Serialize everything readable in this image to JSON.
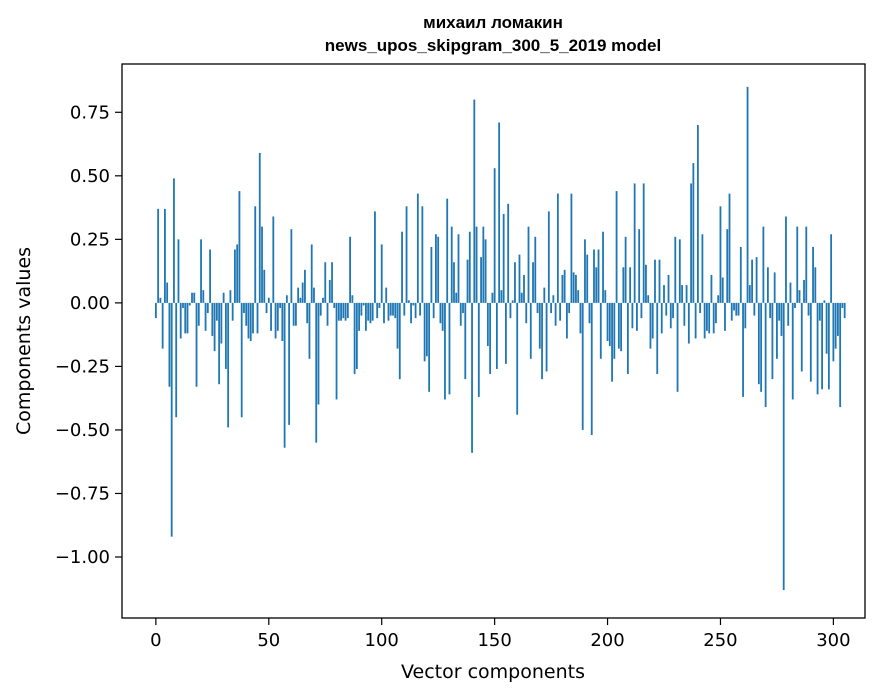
{
  "chart_data": {
    "type": "bar",
    "title": "михаил ломакин",
    "subtitle": "news_upos_skipgram_300_5_2019 model",
    "xlabel": "Vector components",
    "ylabel": "Components values",
    "xlim": [
      -15,
      314
    ],
    "ylim": [
      -1.24,
      0.94
    ],
    "xticks": [
      0,
      50,
      100,
      150,
      200,
      250,
      300
    ],
    "xtick_labels": [
      "0",
      "50",
      "100",
      "150",
      "200",
      "250",
      "300"
    ],
    "yticks": [
      0.75,
      0.5,
      0.25,
      0.0,
      -0.25,
      -0.5,
      -0.75,
      -1.0
    ],
    "ytick_labels": [
      "0.75",
      "0.50",
      "0.25",
      "0.00",
      "−0.25",
      "−0.50",
      "−0.75",
      "−1.00"
    ],
    "bar_color": "#1f77b4",
    "series": [
      {
        "name": "components",
        "values": [
          -0.06,
          0.37,
          0.02,
          -0.18,
          0.37,
          0.08,
          -0.33,
          -0.92,
          0.49,
          -0.45,
          0.25,
          -0.14,
          -0.02,
          -0.12,
          -0.12,
          -0.01,
          0.04,
          0.04,
          -0.33,
          -0.09,
          0.25,
          0.05,
          -0.11,
          -0.04,
          0.21,
          -0.13,
          -0.19,
          -0.07,
          -0.32,
          -0.16,
          0.04,
          -0.26,
          -0.49,
          0.05,
          -0.07,
          0.21,
          0.23,
          0.44,
          -0.45,
          -0.04,
          -0.09,
          -0.14,
          -0.15,
          -0.12,
          0.38,
          -0.12,
          0.59,
          0.3,
          0.13,
          -0.04,
          0.02,
          -0.11,
          0.34,
          -0.14,
          -0.11,
          -0.02,
          -0.15,
          -0.57,
          0.03,
          -0.48,
          0.29,
          -0.09,
          -0.09,
          0.06,
          0.02,
          0.08,
          0.13,
          -0.08,
          -0.22,
          0.23,
          0.06,
          -0.55,
          -0.4,
          -0.05,
          0.02,
          0.16,
          -0.09,
          0.09,
          0.16,
          -0.02,
          -0.38,
          -0.07,
          -0.07,
          -0.06,
          -0.07,
          -0.06,
          0.26,
          0.03,
          -0.28,
          -0.26,
          -0.11,
          -0.05,
          -0.01,
          -0.11,
          -0.07,
          -0.08,
          -0.07,
          0.36,
          -0.06,
          -0.02,
          0.23,
          -0.08,
          0.06,
          -0.07,
          -0.05,
          -0.05,
          -0.06,
          -0.18,
          -0.3,
          0.28,
          -0.05,
          0.38,
          0.01,
          -0.08,
          -0.01,
          -0.06,
          0.43,
          -0.05,
          0.38,
          -0.23,
          -0.21,
          -0.35,
          0.22,
          -0.06,
          0.27,
          0.26,
          -0.08,
          -0.11,
          -0.38,
          0.41,
          -0.36,
          0.3,
          0.16,
          0.04,
          0.27,
          -0.09,
          -0.04,
          -0.3,
          0.17,
          0.28,
          -0.59,
          0.8,
          0.3,
          -0.37,
          0.18,
          0.3,
          0.25,
          -0.17,
          -0.28,
          0.04,
          0.53,
          -0.26,
          0.71,
          0.05,
          0.35,
          -0.24,
          0.39,
          -0.06,
          0.01,
          0.16,
          -0.44,
          0.19,
          0.04,
          0.11,
          -0.08,
          0.3,
          -0.22,
          0.16,
          0.26,
          -0.04,
          -0.18,
          -0.3,
          0.06,
          -0.27,
          0.36,
          -0.04,
          0.03,
          -0.09,
          0.43,
          -0.07,
          0.11,
          0.13,
          -0.14,
          -0.04,
          0.43,
          0.12,
          0.11,
          0.05,
          -0.12,
          -0.5,
          0.25,
          0.19,
          -0.08,
          -0.52,
          0.21,
          0.14,
          0.21,
          -0.22,
          0.28,
          0.05,
          -0.15,
          -0.17,
          -0.31,
          -0.22,
          0.44,
          -0.18,
          -0.19,
          0.14,
          0.26,
          -0.28,
          0.14,
          -0.1,
          0.47,
          -0.11,
          0.29,
          -0.06,
          0.47,
          0.15,
          0.03,
          -0.18,
          -0.14,
          0.17,
          -0.28,
          0.17,
          -0.12,
          0.07,
          -0.05,
          0.11,
          -0.1,
          -0.06,
          0.26,
          -0.35,
          0.25,
          0.07,
          -0.09,
          0.07,
          -0.16,
          0.47,
          0.55,
          -0.14,
          0.7,
          -0.04,
          0.27,
          -0.14,
          -0.11,
          -0.12,
          0.11,
          -0.12,
          -0.08,
          0.03,
          0.38,
          0.1,
          -0.11,
          0.29,
          0.43,
          -0.07,
          -0.03,
          -0.05,
          -0.05,
          0.22,
          -0.37,
          -0.1,
          0.85,
          0.07,
          0.17,
          -0.05,
          0.18,
          -0.32,
          -0.35,
          0.3,
          -0.41,
          0.14,
          -0.06,
          -0.3,
          0.12,
          -0.22,
          -0.07,
          -0.13,
          -1.13,
          0.34,
          -0.09,
          0.08,
          -0.38,
          -0.02,
          0.3,
          0.05,
          -0.27,
          0.09,
          0.3,
          -0.05,
          -0.31,
          0.22,
          0.14,
          -0.36,
          -0.07,
          -0.34,
          0.01,
          -0.2,
          -0.34,
          0.27,
          -0.23,
          -0.18,
          -0.13,
          -0.41,
          -0.02,
          -0.06
        ]
      }
    ]
  }
}
